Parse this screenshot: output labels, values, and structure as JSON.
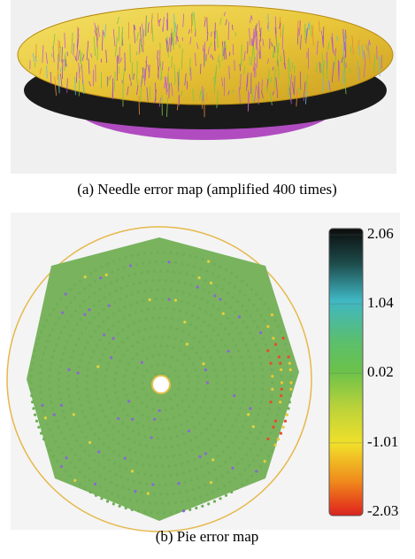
{
  "figure_a": {
    "caption": "(a) Needle error map (amplified 400 times)"
  },
  "figure_b": {
    "caption": "(b) Pie error map",
    "colorbar": {
      "ticks": [
        2.06,
        1.04,
        0.02,
        -1.01,
        -2.03
      ]
    }
  }
}
